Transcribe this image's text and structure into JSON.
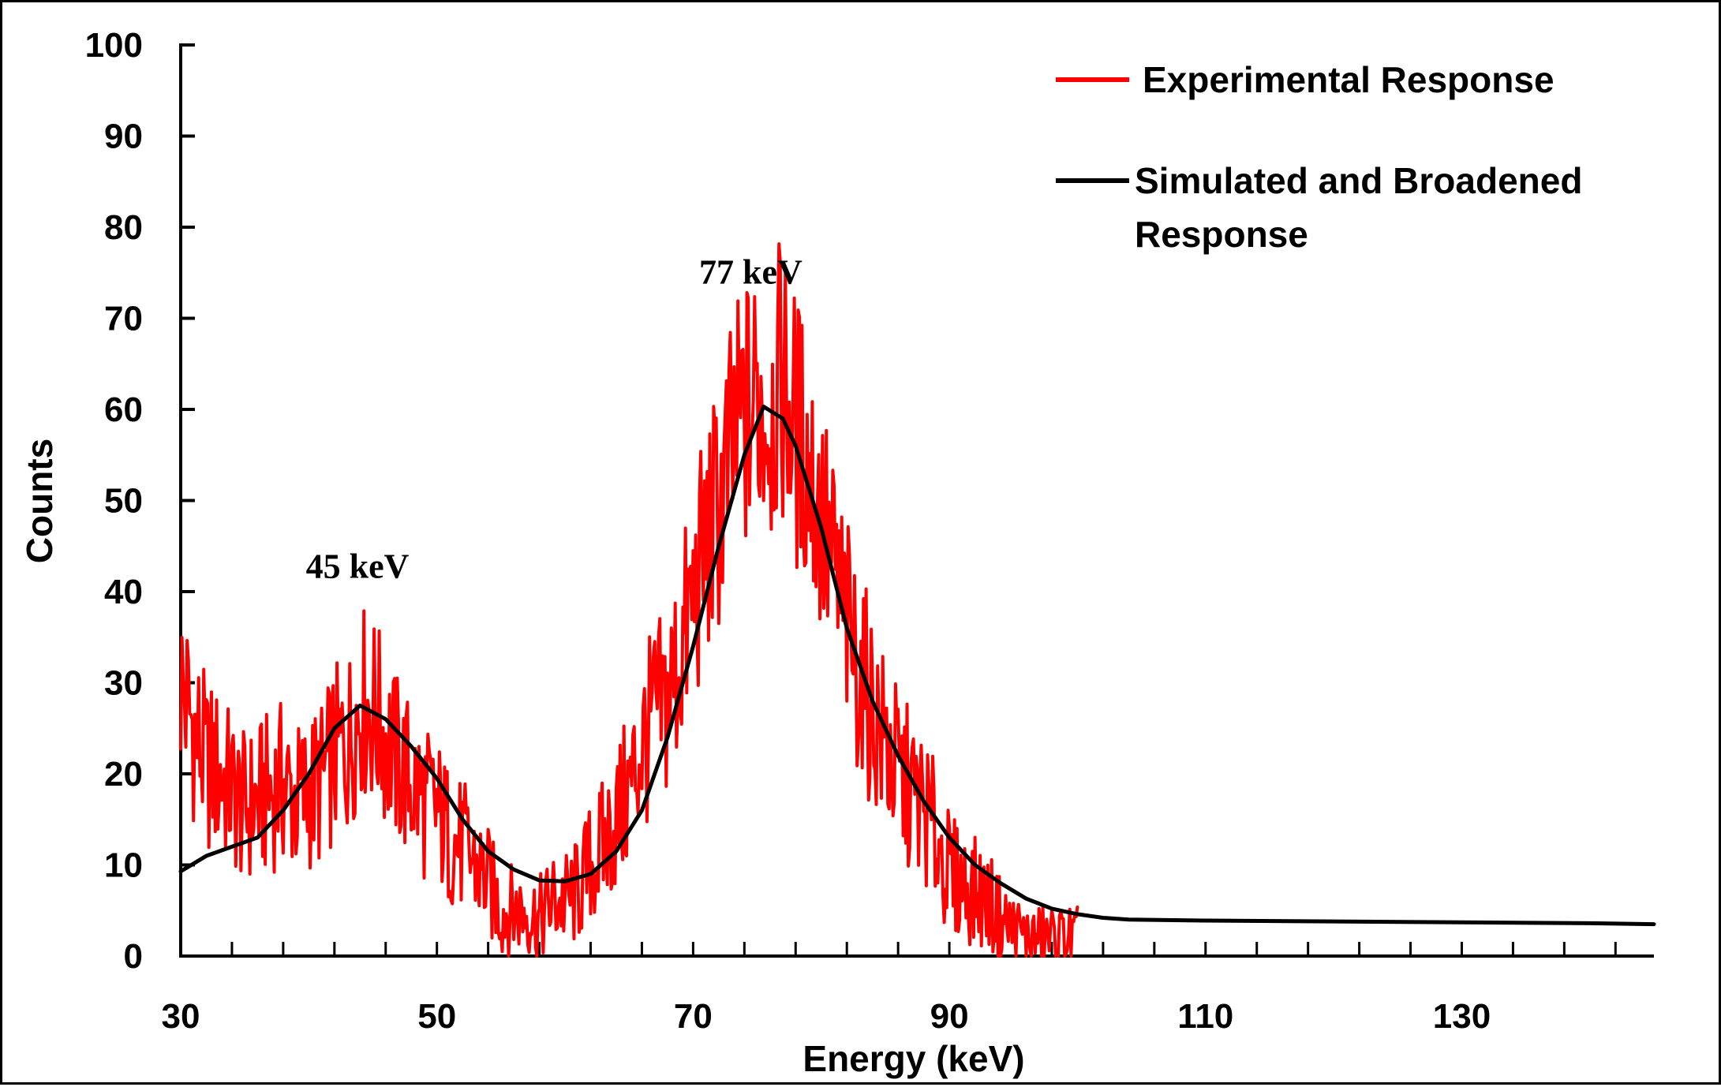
{
  "chart_data": {
    "type": "line",
    "title": "",
    "xlabel": "Energy (keV)",
    "ylabel": "Counts",
    "xlim": [
      30,
      145
    ],
    "ylim": [
      0,
      100
    ],
    "x_ticks": [
      30,
      50,
      70,
      90,
      110,
      130
    ],
    "x_minor_step": 4,
    "y_ticks": [
      0,
      10,
      20,
      30,
      40,
      50,
      60,
      70,
      80,
      90,
      100
    ],
    "grid": false,
    "legend_position": "top-right",
    "colors": {
      "experimental": "#ff0000",
      "simulated": "#000000"
    },
    "series": [
      {
        "name": "Experimental Response",
        "color": "#ff0000",
        "x": [
          30,
          31,
          32,
          33,
          34,
          35,
          36,
          37,
          38,
          39,
          40,
          41,
          42,
          43,
          44,
          45,
          46,
          47,
          48,
          49,
          50,
          51,
          52,
          53,
          54,
          55,
          56,
          57,
          58,
          59,
          60,
          61,
          62,
          63,
          64,
          65,
          66,
          67,
          68,
          69,
          70,
          71,
          72,
          73,
          74,
          75,
          76,
          77,
          78,
          79,
          80,
          81,
          82,
          83,
          84,
          85,
          86,
          87,
          88,
          89,
          90,
          91,
          92,
          93,
          94,
          95,
          96,
          97,
          98,
          99,
          100
        ],
        "y": [
          30,
          25,
          21,
          20,
          18,
          16,
          17,
          18,
          19,
          17,
          18,
          19,
          22,
          23,
          28,
          27,
          24,
          21,
          19,
          17,
          16,
          13,
          12,
          10,
          8,
          5,
          5,
          5,
          4,
          6,
          6,
          7,
          10,
          12,
          15,
          18,
          23,
          26,
          28,
          33,
          39,
          45,
          49,
          55,
          59,
          61,
          60,
          63,
          58,
          54,
          48,
          42,
          36,
          31,
          27,
          23,
          20,
          18,
          16,
          13,
          9,
          8,
          7,
          6,
          4,
          3,
          2,
          2,
          2,
          2,
          2
        ]
      },
      {
        "name": "Simulated and Broadened Response",
        "color": "#000000",
        "x": [
          30,
          32,
          34,
          36,
          38,
          40,
          42,
          44,
          46,
          48,
          50,
          52,
          54,
          56,
          58,
          60,
          62,
          64,
          66,
          68,
          70,
          72,
          74,
          75.5,
          77,
          78,
          80,
          82,
          84,
          86,
          88,
          90,
          92,
          94,
          96,
          98,
          100,
          102,
          104,
          110,
          120,
          130,
          140,
          145
        ],
        "y": [
          9.3,
          11,
          12,
          13,
          16,
          20,
          25,
          27.5,
          26,
          23,
          19.5,
          15,
          11.5,
          9.5,
          8.3,
          8.2,
          9,
          11.5,
          16,
          24,
          34,
          45,
          55,
          60.3,
          59,
          56,
          47,
          36,
          28,
          22,
          17,
          13,
          10,
          8,
          6.3,
          5.2,
          4.6,
          4.2,
          4.0,
          3.9,
          3.8,
          3.7,
          3.6,
          3.5
        ]
      }
    ],
    "annotations": [
      {
        "text": "45 keV",
        "x": 43.8,
        "y": 41.5
      },
      {
        "text": "77 keV",
        "x": 74.5,
        "y": 73.8
      }
    ],
    "legend": [
      {
        "label_lines": [
          "Experimental Response"
        ]
      },
      {
        "label_lines": [
          "Simulated and Broadened",
          "Response"
        ]
      }
    ]
  }
}
